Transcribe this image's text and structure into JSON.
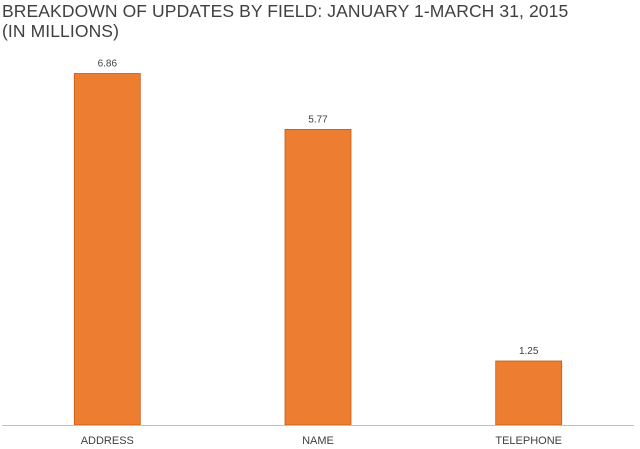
{
  "chart_data": {
    "type": "bar",
    "title": "BREAKDOWN OF UPDATES BY FIELD: JANUARY 1-MARCH 31, 2015",
    "subtitle": "(IN MILLIONS)",
    "categories": [
      "ADDRESS",
      "NAME",
      "TELEPHONE"
    ],
    "values": [
      6.86,
      5.77,
      1.25
    ],
    "value_labels": [
      "6.86",
      "5.77",
      "1.25"
    ],
    "xlabel": "",
    "ylabel": "",
    "ylim": [
      0,
      7.5
    ],
    "grid": false,
    "legend": "none",
    "bar_color": "#ED7D31",
    "bar_edge_color": "#C55A11",
    "axis_color": "#bfbfbf",
    "text_color": "#404040"
  }
}
